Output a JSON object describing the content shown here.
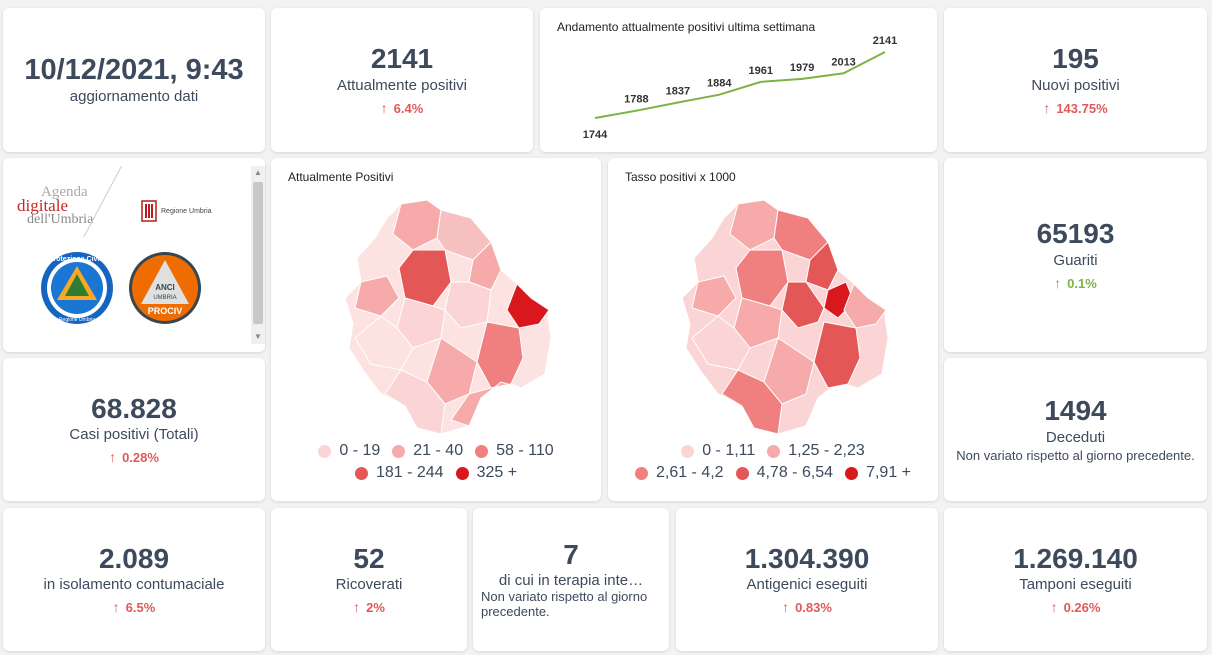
{
  "update": {
    "datetime": "10/12/2021, 9:43",
    "label": "aggiornamento dati"
  },
  "attualmente_positivi": {
    "value": "2141",
    "label": "Attualmente positivi",
    "trend": "6.4%",
    "arrow": "↑"
  },
  "trend_chart": {
    "title": "Andamento attualmente positivi ultima settimana",
    "line_color": "#7cb342"
  },
  "chart_data": {
    "type": "line",
    "title": "Andamento attualmente positivi ultima settimana",
    "xlabel": "",
    "ylabel": "",
    "x": [
      1,
      2,
      3,
      4,
      5,
      6,
      7,
      8
    ],
    "values": [
      1744,
      1788,
      1837,
      1884,
      1961,
      1979,
      2013,
      2141
    ],
    "ylim": [
      1744,
      2141
    ],
    "grid": false
  },
  "nuovi_positivi": {
    "value": "195",
    "label": "Nuovi positivi",
    "trend": "143.75%",
    "arrow": "↑"
  },
  "logos": {
    "agenda_line1": "Agenda",
    "agenda_line2": "digitale",
    "agenda_line3": "dell'Umbria",
    "regione": "Regione Umbria",
    "protezione": "Protezione Civile",
    "protezione_sub": "Regione Umbria",
    "anci_line1": "ANCI",
    "anci_line2": "UMBRIA",
    "anci_line3": "PROCIV"
  },
  "map1": {
    "title": "Attualmente Positivi",
    "legend": [
      {
        "label": "0 - 19",
        "color": "#fbd5d5"
      },
      {
        "label": "21 - 40",
        "color": "#f7aaaa"
      },
      {
        "label": "58 - 110",
        "color": "#f08080"
      },
      {
        "label": "181 - 244",
        "color": "#e45757"
      },
      {
        "label": "325 +",
        "color": "#d9181e"
      }
    ]
  },
  "map2": {
    "title": "Tasso positivi x 1000",
    "legend": [
      {
        "label": "0 - 1,11",
        "color": "#fbd5d5"
      },
      {
        "label": "1,25 - 2,23",
        "color": "#f7aaaa"
      },
      {
        "label": "2,61 - 4,2",
        "color": "#f08080"
      },
      {
        "label": "4,78 - 6,54",
        "color": "#e45757"
      },
      {
        "label": "7,91 +",
        "color": "#d9181e"
      }
    ]
  },
  "guariti": {
    "value": "65193",
    "label": "Guariti",
    "trend": "0.1%",
    "arrow": "↑"
  },
  "casi_totali": {
    "value": "68.828",
    "label": "Casi positivi (Totali)",
    "trend": "0.28%",
    "arrow": "↑"
  },
  "deceduti": {
    "value": "1494",
    "label": "Deceduti",
    "note": "Non variato rispetto al giorno precedente."
  },
  "isolamento": {
    "value": "2.089",
    "label": "in isolamento contumaciale",
    "trend": "6.5%",
    "arrow": "↑"
  },
  "ricoverati": {
    "value": "52",
    "label": "Ricoverati",
    "trend": "2%",
    "arrow": "↑"
  },
  "terapia": {
    "value": "7",
    "label": "di cui in terapia inte…",
    "note": "Non variato rispetto al giorno precedente."
  },
  "antigenici": {
    "value": "1.304.390",
    "label": "Antigenici eseguiti",
    "trend": "0.83%",
    "arrow": "↑"
  },
  "tamponi": {
    "value": "1.269.140",
    "label": "Tamponi eseguiti",
    "trend": "0.26%",
    "arrow": "↑"
  }
}
